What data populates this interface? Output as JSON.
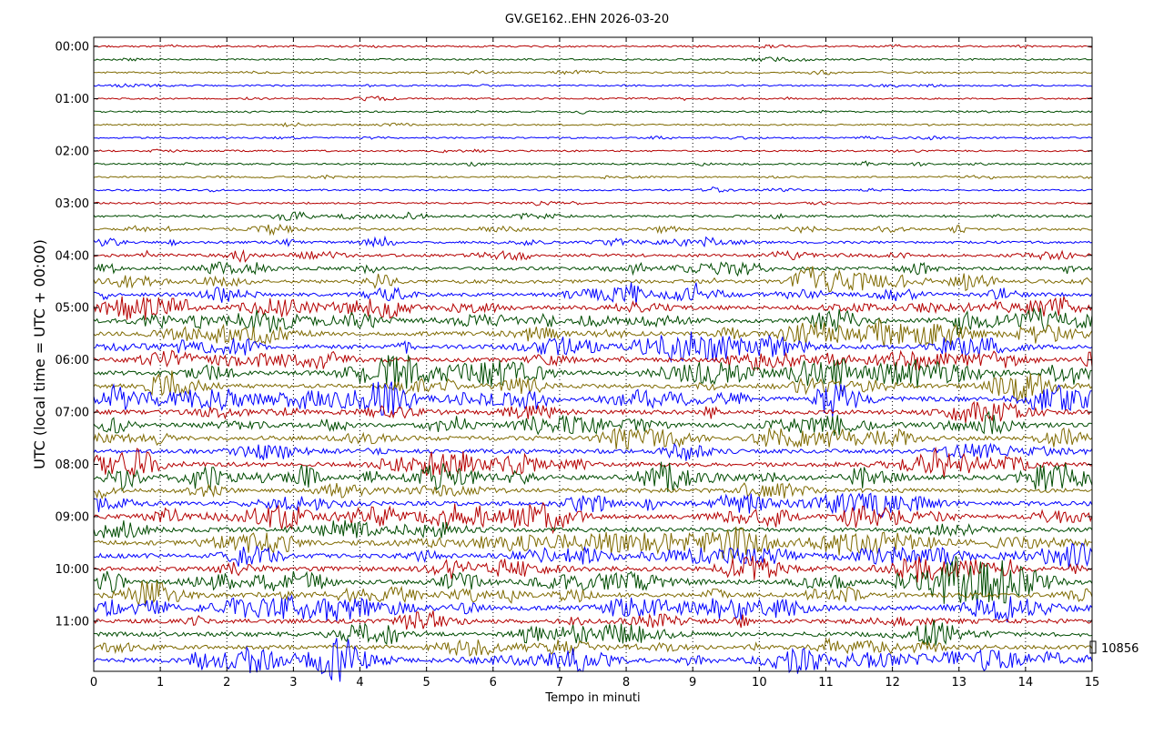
{
  "chart_data": {
    "type": "line",
    "title": "GV.GE162..EHN 2026-03-20",
    "xlabel": "Tempo in minuti",
    "ylabel": "UTC (local time = UTC + 00:00)",
    "xlim": [
      0,
      15
    ],
    "x_ticks": [
      "0",
      "1",
      "2",
      "3",
      "4",
      "5",
      "6",
      "7",
      "8",
      "9",
      "10",
      "11",
      "12",
      "13",
      "14",
      "15"
    ],
    "y_tick_labels": [
      "00:00",
      "01:00",
      "02:00",
      "03:00",
      "04:00",
      "05:00",
      "06:00",
      "07:00",
      "08:00",
      "09:00",
      "10:00",
      "11:00"
    ],
    "trace_interval_minutes": 15,
    "trace_count": 48,
    "trace_colors": [
      "#b50000",
      "#004c00",
      "#7f6a00",
      "#0000ff"
    ],
    "grid": "vertical dotted at each minute",
    "scale_marker_label": "10856",
    "trace_amplitude": [
      0.15,
      0.15,
      0.15,
      0.1,
      0.12,
      0.12,
      0.12,
      0.12,
      0.15,
      0.15,
      0.12,
      0.15,
      0.15,
      0.3,
      0.3,
      0.3,
      0.45,
      0.5,
      0.6,
      0.6,
      0.7,
      0.75,
      0.75,
      0.75,
      0.8,
      0.8,
      0.75,
      0.8,
      0.8,
      0.75,
      0.8,
      0.8,
      0.8,
      0.8,
      0.75,
      0.75,
      0.8,
      0.8,
      0.8,
      0.8,
      0.85,
      0.85,
      0.8,
      0.85,
      0.8,
      0.8,
      0.75,
      0.8
    ]
  }
}
